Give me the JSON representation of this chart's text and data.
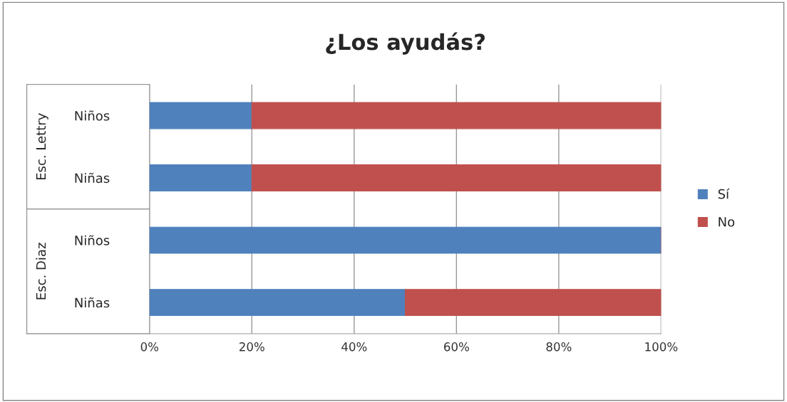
{
  "chart_data": {
    "type": "bar",
    "orientation": "horizontal",
    "stacked": true,
    "title": "¿Los ayudás?",
    "categories": [
      "Niños",
      "Niñas",
      "Niños",
      "Niñas"
    ],
    "series": [
      {
        "name": "Sí",
        "color": "#4f81bd",
        "values": [
          20,
          20,
          100,
          50
        ]
      },
      {
        "name": "No",
        "color": "#c0504d",
        "values": [
          80,
          80,
          0,
          50
        ]
      }
    ],
    "xlim": [
      0,
      100
    ],
    "xticks": [
      {
        "value": 0,
        "label": "0%"
      },
      {
        "value": 20,
        "label": "20%"
      },
      {
        "value": 40,
        "label": "40%"
      },
      {
        "value": 60,
        "label": "60%"
      },
      {
        "value": 80,
        "label": "80%"
      },
      {
        "value": 100,
        "label": "100%"
      }
    ],
    "annotations": [
      "Esc. Lettry",
      "Esc. Diaz"
    ],
    "grid": "x",
    "legend": "right"
  }
}
